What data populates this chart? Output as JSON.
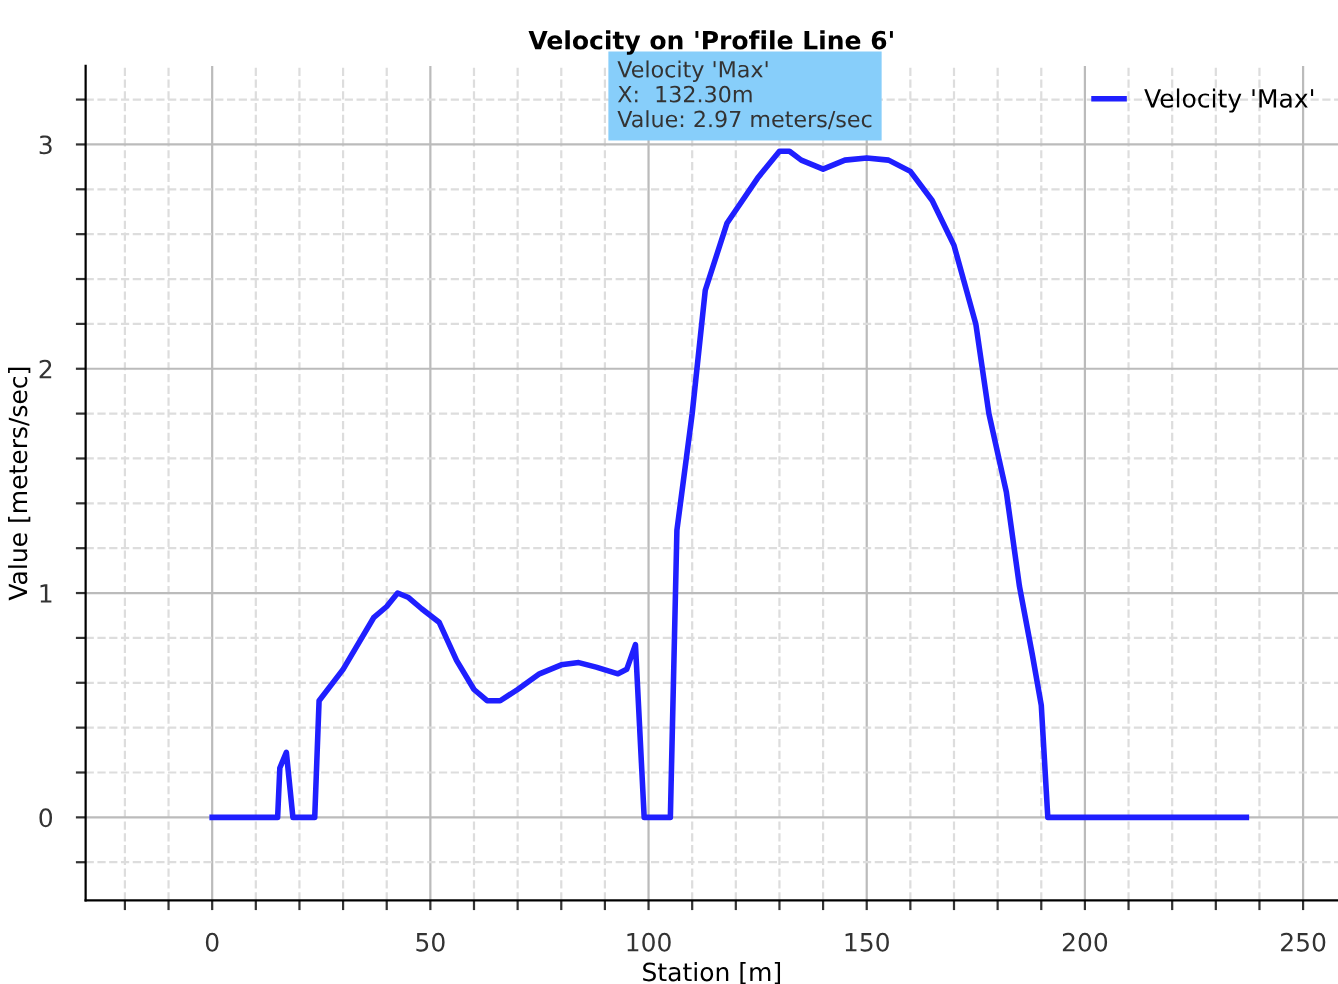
{
  "chart_data": {
    "type": "line",
    "title": "Velocity on 'Profile Line 6'",
    "xlabel": "Station [m]",
    "ylabel": "Value [meters/sec]",
    "x": [
      0,
      15,
      15.5,
      17,
      18.5,
      23.5,
      24.5,
      30,
      37,
      40,
      42.5,
      45,
      48,
      52,
      56,
      60,
      63,
      66,
      70,
      75,
      80,
      84,
      88,
      93,
      95,
      97,
      99,
      105,
      106.5,
      110,
      113,
      118,
      125,
      130,
      132.3,
      135,
      140,
      145,
      150,
      155,
      160,
      165,
      170,
      175,
      178,
      182,
      185,
      188,
      190,
      191.5,
      237
    ],
    "series": [
      {
        "name": "Velocity 'Max'",
        "color": "#1f1fff",
        "values": [
          0,
          0,
          0.22,
          0.29,
          0,
          0,
          0.52,
          0.66,
          0.89,
          0.94,
          1.0,
          0.98,
          0.93,
          0.87,
          0.7,
          0.57,
          0.52,
          0.52,
          0.57,
          0.64,
          0.68,
          0.69,
          0.67,
          0.64,
          0.66,
          0.77,
          0,
          0,
          1.28,
          1.8,
          2.35,
          2.65,
          2.85,
          2.97,
          2.97,
          2.93,
          2.89,
          2.93,
          2.94,
          2.93,
          2.88,
          2.75,
          2.55,
          2.2,
          1.8,
          1.45,
          1.03,
          0.72,
          0.5,
          0,
          0
        ]
      }
    ],
    "xlim": [
      -29,
      258
    ],
    "ylim": [
      -0.37,
      3.35
    ],
    "xticks": [
      {
        "value": -20,
        "label": null
      },
      {
        "value": -10,
        "label": null
      },
      0,
      {
        "value": 10,
        "label": null
      },
      {
        "value": 20,
        "label": null
      },
      {
        "value": 30,
        "label": null
      },
      {
        "value": 40,
        "label": null
      },
      50,
      {
        "value": 60,
        "label": null
      },
      {
        "value": 70,
        "label": null
      },
      {
        "value": 80,
        "label": null
      },
      {
        "value": 90,
        "label": null
      },
      100,
      {
        "value": 110,
        "label": null
      },
      {
        "value": 120,
        "label": null
      },
      {
        "value": 130,
        "label": null
      },
      {
        "value": 140,
        "label": null
      },
      150,
      {
        "value": 160,
        "label": null
      },
      {
        "value": 170,
        "label": null
      },
      {
        "value": 180,
        "label": null
      },
      {
        "value": 190,
        "label": null
      },
      200,
      {
        "value": 210,
        "label": null
      },
      {
        "value": 220,
        "label": null
      },
      {
        "value": 230,
        "label": null
      },
      {
        "value": 240,
        "label": null
      },
      250
    ],
    "yticks": [
      {
        "value": -0.2,
        "label": null
      },
      0,
      {
        "value": 0.2,
        "label": null
      },
      {
        "value": 0.4,
        "label": null
      },
      {
        "value": 0.6,
        "label": null
      },
      {
        "value": 0.8,
        "label": null
      },
      1,
      {
        "value": 1.2,
        "label": null
      },
      {
        "value": 1.4,
        "label": null
      },
      {
        "value": 1.6,
        "label": null
      },
      {
        "value": 1.8,
        "label": null
      },
      2,
      {
        "value": 2.2,
        "label": null
      },
      {
        "value": 2.4,
        "label": null
      },
      {
        "value": 2.6,
        "label": null
      },
      {
        "value": 2.8,
        "label": null
      },
      3,
      {
        "value": 3.2,
        "label": null
      }
    ],
    "grid": true,
    "legend": "top right",
    "marker": "none",
    "line_style": "solid",
    "annotations": [
      {
        "text": "Velocity 'Max'\nX:  132.30m\nValue: 2.97 meters/sec",
        "x": 132.3,
        "y": 2.97
      }
    ]
  }
}
